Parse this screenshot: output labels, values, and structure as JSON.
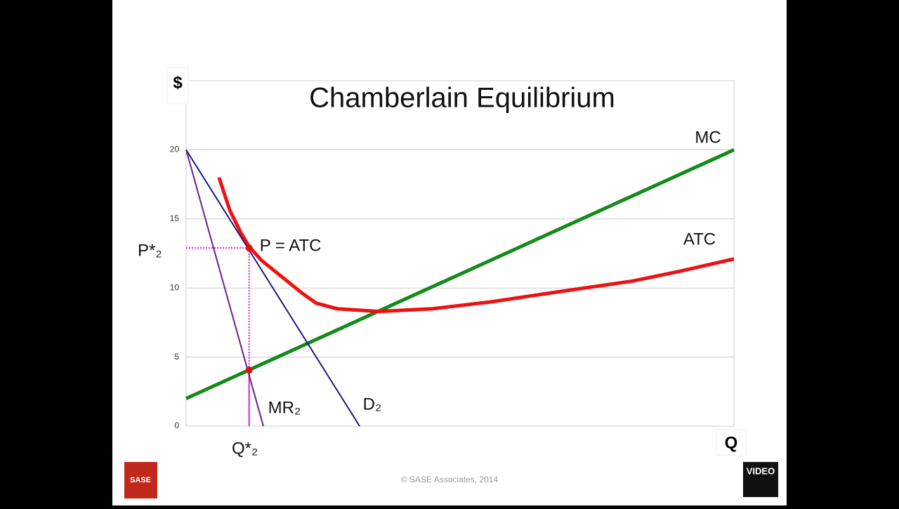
{
  "chart_data": {
    "type": "line",
    "title": "Chamberlain Equilibrium",
    "y_axis_label": "$",
    "x_axis_label": "Q",
    "xlim": [
      0,
      40
    ],
    "ylim": [
      0,
      25
    ],
    "yticks": [
      0,
      5,
      10,
      15,
      20
    ],
    "grid": true,
    "series": [
      {
        "name": "MC",
        "color": "#138a1a",
        "x": [
          0,
          40
        ],
        "values": [
          2,
          20
        ]
      },
      {
        "name": "ATC",
        "color": "#ee1111",
        "x": [
          2.4,
          3.2,
          4.0,
          4.6,
          5.5,
          6.5,
          7.5,
          8.5,
          9.5,
          11,
          14.1,
          18,
          22.3,
          27,
          32.6,
          36,
          40
        ],
        "values": [
          18,
          15.6,
          14,
          13,
          12,
          11.2,
          10.4,
          9.6,
          8.9,
          8.5,
          8.3,
          8.5,
          9,
          9.7,
          10.5,
          11.2,
          12.1
        ]
      },
      {
        "name": "D₂",
        "color": "#1a1a7a",
        "x": [
          0,
          12.67
        ],
        "values": [
          20,
          0
        ]
      },
      {
        "name": "MR₂",
        "color": "#6a1f8a",
        "x": [
          0,
          5.64
        ],
        "values": [
          20,
          0
        ]
      }
    ],
    "points": [
      {
        "label": "P = ATC",
        "x": 4.6,
        "y": 12.9
      },
      {
        "x": 4.6,
        "y": 4.06
      }
    ],
    "price_label": "P*₂",
    "quantity_label": "Q*₂",
    "footer": "© SASE Associates, 2014",
    "logo_left": "SASE",
    "logo_right": "VIDEO"
  }
}
